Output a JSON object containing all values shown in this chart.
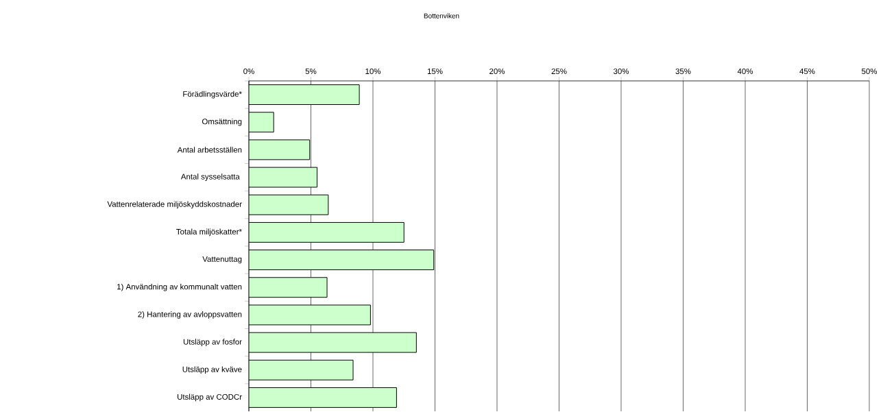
{
  "chart_data": {
    "type": "bar",
    "orientation": "horizontal",
    "title": "Bottenviken",
    "categories": [
      "Förädlingsvärde*",
      "Omsättning",
      "Antal arbetsställen",
      "Antal sysselsatta ",
      "Vattenrelaterade miljöskyddskostnader",
      "Totala miljöskatter*",
      "Vattenuttag",
      "1) Användning av kommunalt vatten",
      "2) Hantering av avloppsvatten",
      "Utsläpp av fosfor",
      "Utsläpp av kväve",
      "Utsläpp av CODCr"
    ],
    "values": [
      8.9,
      2.0,
      4.9,
      5.5,
      6.4,
      12.5,
      14.9,
      6.3,
      9.8,
      13.5,
      8.4,
      11.9
    ],
    "color": "#ccffcc",
    "xlim": [
      0,
      50
    ],
    "xticks": [
      {
        "value": 0,
        "label": "0%"
      },
      {
        "value": 5,
        "label": "5%"
      },
      {
        "value": 10,
        "label": "10%"
      },
      {
        "value": 15,
        "label": "15%"
      },
      {
        "value": 20,
        "label": "20%"
      },
      {
        "value": 25,
        "label": "25%"
      },
      {
        "value": 30,
        "label": "30%"
      },
      {
        "value": 35,
        "label": "35%"
      },
      {
        "value": 40,
        "label": "40%"
      },
      {
        "value": 45,
        "label": "45%"
      },
      {
        "value": 50,
        "label": "50%"
      }
    ],
    "grid": "x"
  }
}
